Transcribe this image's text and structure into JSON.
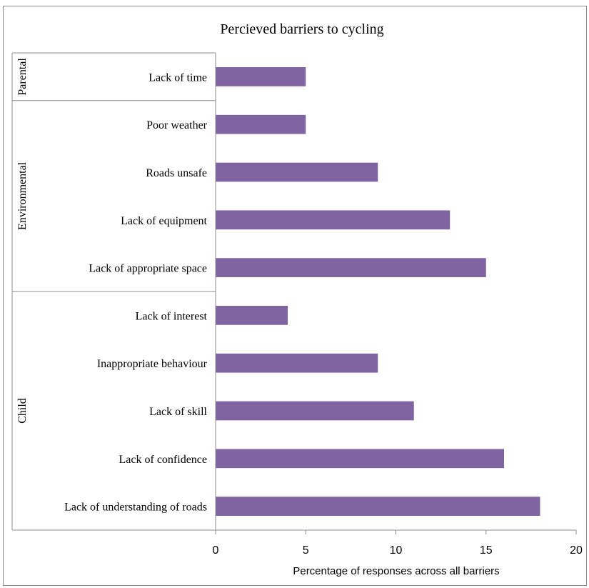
{
  "chart_data": {
    "type": "bar",
    "orientation": "horizontal",
    "title": "Percieved barriers to cycling",
    "xlabel": "Percentage of responses across all barriers",
    "ylabel": "",
    "xlim": [
      0,
      20
    ],
    "xticks": [
      "0",
      "5",
      "10",
      "15",
      "20"
    ],
    "grid": false,
    "bar_color": "#8064a2",
    "groups": [
      {
        "name": "Parental",
        "count": 1
      },
      {
        "name": "Environmental",
        "count": 4
      },
      {
        "name": "Child",
        "count": 5
      }
    ],
    "categories": [
      "Lack of time",
      "Poor weather",
      "Roads unsafe",
      "Lack of equipment",
      "Lack of appropriate space",
      "Lack of interest",
      "Inappropriate behaviour",
      "Lack of skill",
      "Lack of confidence",
      "Lack of understanding of roads"
    ],
    "values": [
      5,
      5,
      9,
      13,
      15,
      4,
      9,
      11,
      16,
      18
    ]
  }
}
